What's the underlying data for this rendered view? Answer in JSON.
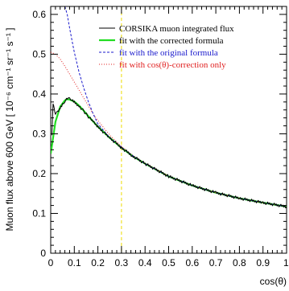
{
  "chart_data": {
    "type": "line",
    "xlabel": "cos(θ)",
    "ylabel": "Muon flux above 600 GeV [ 10⁻⁶ cm⁻¹ sr⁻¹ s⁻¹ ]",
    "xlim": [
      0,
      1
    ],
    "ylim": [
      0,
      0.62
    ],
    "x_ticks": [
      "0",
      "0.1",
      "0.2",
      "0.3",
      "0.4",
      "0.5",
      "0.6",
      "0.7",
      "0.8",
      "0.9",
      "1"
    ],
    "y_ticks": [
      "0",
      "0.1",
      "0.2",
      "0.3",
      "0.4",
      "0.5",
      "0.6"
    ],
    "grid": false,
    "legend_position": "top-right",
    "colors": {
      "black": "#000000",
      "green": "#22dd22",
      "blue": "#1a1acc",
      "red": "#e02020",
      "yellow": "#eedd00"
    },
    "vertical_marker": {
      "x": 0.3
    },
    "series": [
      {
        "name": "CORSIKA muon integrated flux",
        "style": "solid-thin",
        "color": "black",
        "x": [
          0.005,
          0.01,
          0.015,
          0.02,
          0.03,
          0.04,
          0.05,
          0.06,
          0.07,
          0.08,
          0.09,
          0.1,
          0.12,
          0.14,
          0.16,
          0.18,
          0.2,
          0.25,
          0.3,
          0.35,
          0.4,
          0.5,
          0.6,
          0.7,
          0.8,
          0.9,
          1.0
        ],
        "values": [
          0.3,
          0.375,
          0.36,
          0.35,
          0.355,
          0.365,
          0.375,
          0.383,
          0.387,
          0.387,
          0.385,
          0.38,
          0.37,
          0.357,
          0.343,
          0.33,
          0.317,
          0.29,
          0.265,
          0.243,
          0.225,
          0.193,
          0.17,
          0.152,
          0.138,
          0.127,
          0.117
        ]
      },
      {
        "name": "fit with the corrected formula",
        "style": "solid-thick",
        "color": "green",
        "x": [
          0.0,
          0.02,
          0.04,
          0.06,
          0.07,
          0.08,
          0.1,
          0.12,
          0.14,
          0.16,
          0.18,
          0.2,
          0.25,
          0.3,
          0.35,
          0.4,
          0.5,
          0.6,
          0.7,
          0.8,
          0.9,
          1.0
        ],
        "values": [
          0.25,
          0.33,
          0.368,
          0.384,
          0.387,
          0.386,
          0.381,
          0.371,
          0.358,
          0.344,
          0.331,
          0.318,
          0.29,
          0.265,
          0.243,
          0.225,
          0.193,
          0.17,
          0.152,
          0.138,
          0.127,
          0.117
        ]
      },
      {
        "name": "fit with the original formula",
        "style": "dashed",
        "color": "blue",
        "x": [
          0.06,
          0.07,
          0.08,
          0.09,
          0.1,
          0.12,
          0.14,
          0.16,
          0.18,
          0.2,
          0.25,
          0.3,
          0.35,
          0.4,
          0.5,
          0.6,
          0.7,
          0.8,
          0.9,
          1.0
        ],
        "values": [
          0.62,
          0.6,
          0.566,
          0.535,
          0.505,
          0.455,
          0.415,
          0.38,
          0.35,
          0.325,
          0.29,
          0.266,
          0.244,
          0.225,
          0.193,
          0.17,
          0.152,
          0.138,
          0.127,
          0.117
        ]
      },
      {
        "name": "fit with cos(θ)-correction only",
        "style": "dotted",
        "color": "red",
        "x": [
          0.0,
          0.02,
          0.04,
          0.06,
          0.08,
          0.1,
          0.12,
          0.14,
          0.16,
          0.18,
          0.2,
          0.25,
          0.3,
          0.35,
          0.4,
          0.5,
          0.6,
          0.7,
          0.8,
          0.9,
          1.0
        ],
        "values": [
          0.505,
          0.5,
          0.488,
          0.47,
          0.45,
          0.43,
          0.41,
          0.39,
          0.37,
          0.35,
          0.333,
          0.297,
          0.268,
          0.245,
          0.226,
          0.194,
          0.17,
          0.152,
          0.138,
          0.127,
          0.117
        ]
      }
    ]
  }
}
